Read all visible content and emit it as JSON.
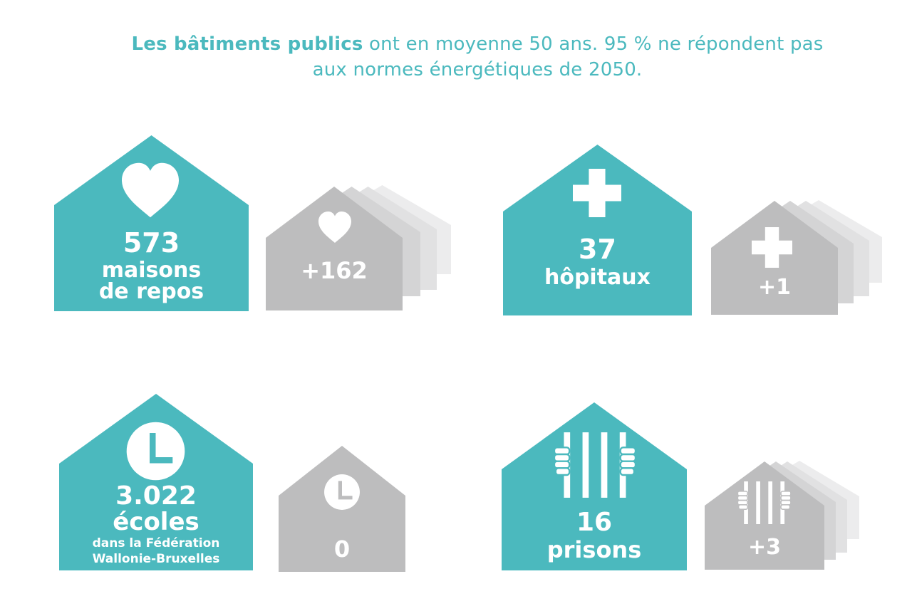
{
  "headline": {
    "bold": "Les bâtiments publics",
    "rest": " ont en moyenne 50 ans. 95 % ne répondent pas",
    "line2": "aux normes énergétiques de 2050."
  },
  "colors": {
    "main": "#4bb9be",
    "extra": "#bdbdbe",
    "ghost1": "#d4d4d5",
    "ghost2": "#e1e1e2",
    "ghost3": "#ececed"
  },
  "groups": [
    {
      "id": "maisons-de-repos",
      "icon": "heart-icon",
      "count": "573",
      "label_lines": [
        "maisons",
        "de repos"
      ],
      "extra": "+162"
    },
    {
      "id": "hopitaux",
      "icon": "medical-cross-icon",
      "count": "37",
      "label_lines": [
        "hôpitaux"
      ],
      "extra": "+1"
    },
    {
      "id": "ecoles",
      "icon": "clock-icon",
      "count": "3.022",
      "label_lines": [
        "écoles"
      ],
      "sub_lines": [
        "dans la Fédération",
        "Wallonie-Bruxelles"
      ],
      "extra": "0"
    },
    {
      "id": "prisons",
      "icon": "prison-bars-icon",
      "count": "16",
      "label_lines": [
        "prisons"
      ],
      "extra": "+3"
    }
  ]
}
